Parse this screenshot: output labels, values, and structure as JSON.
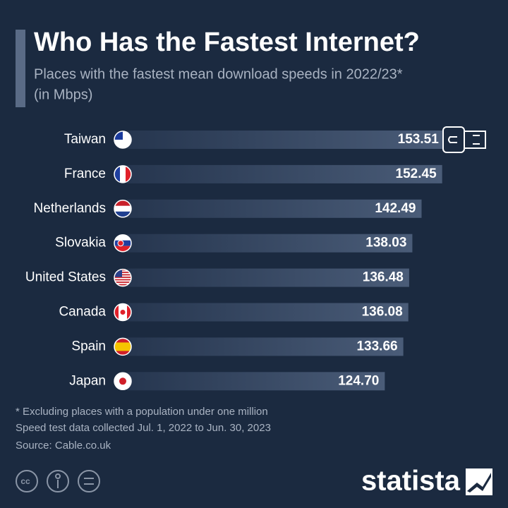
{
  "chart_data": {
    "type": "bar",
    "orientation": "horizontal",
    "title": "Who Has the Fastest Internet?",
    "subtitle": [
      "Places with the fastest mean download speeds in 2022/23*",
      "(in Mbps)"
    ],
    "categories": [
      "Taiwan",
      "France",
      "Netherlands",
      "Slovakia",
      "United States",
      "Canada",
      "Spain",
      "Japan"
    ],
    "values": [
      153.51,
      152.45,
      142.49,
      138.03,
      136.48,
      136.08,
      133.66,
      124.7
    ],
    "value_labels": [
      "153.51",
      "152.45",
      "142.49",
      "138.03",
      "136.48",
      "136.08",
      "133.66",
      "124.70"
    ],
    "notes": [
      "* Excluding places with a population under one million",
      "Speed test data collected Jul. 1, 2022 to Jun. 30, 2023",
      "Source: Cable.co.uk"
    ],
    "brand": "statista"
  }
}
